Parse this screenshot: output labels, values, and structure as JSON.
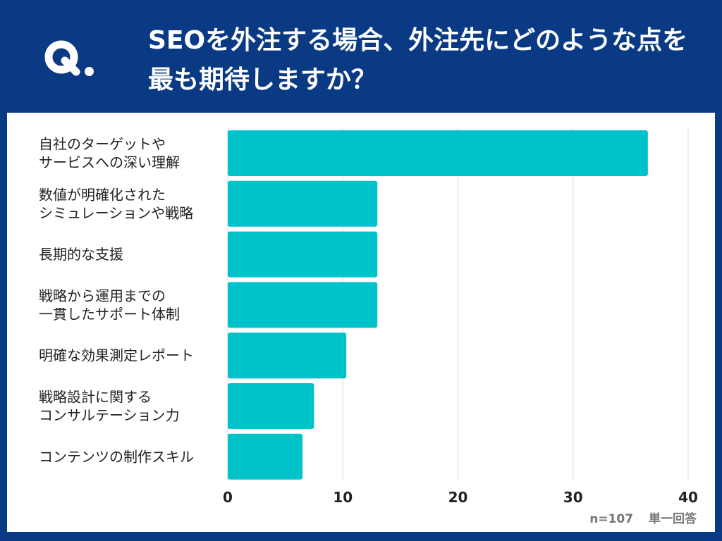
{
  "header": {
    "logo_letter": "Q",
    "title": "SEOを外注する場合、外注先にどのような点を最も期待しますか？"
  },
  "colors": {
    "header_bg": "#0b3a84",
    "bar": "#00c2c9",
    "grid": "#d9d9d9"
  },
  "chart_data": {
    "type": "bar",
    "orientation": "horizontal",
    "categories": [
      [
        "自社のターゲットや",
        "サービスへの深い理解"
      ],
      [
        "数値が明確化された",
        "シミュレーションや戦略"
      ],
      [
        "長期的な支援"
      ],
      [
        "戦略から運用までの",
        "一貫したサポート体制"
      ],
      [
        "明確な効果測定レポート"
      ],
      [
        "戦略設計に関する",
        "コンサルテーション力"
      ],
      [
        "コンテンツの制作スキル"
      ]
    ],
    "values": [
      36.5,
      13,
      13,
      13,
      10.3,
      7.5,
      6.5
    ],
    "xlim": [
      0,
      40
    ],
    "xticks": [
      "0",
      "10",
      "20",
      "30",
      "40"
    ],
    "grid": true
  },
  "footer": {
    "sample": "n=107",
    "answer_type": "単一回答"
  }
}
